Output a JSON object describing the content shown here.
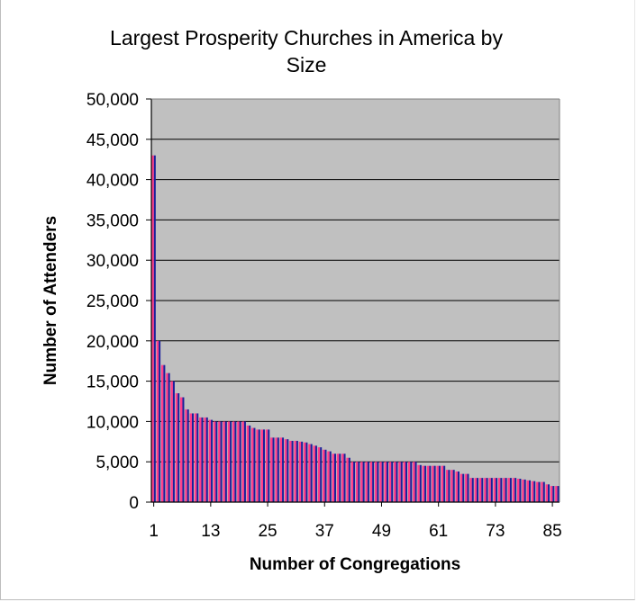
{
  "chart_data": {
    "type": "bar",
    "title_line1": "Largest Prosperity Churches in America by",
    "title_line2": "Size",
    "xlabel": "Number of Congregations",
    "ylabel": "Number of Attenders",
    "ylim": [
      0,
      50000
    ],
    "yticks": [
      0,
      5000,
      10000,
      15000,
      20000,
      25000,
      30000,
      35000,
      40000,
      45000,
      50000
    ],
    "ytick_labels": [
      "0",
      "5,000",
      "10,000",
      "15,000",
      "20,000",
      "25,000",
      "30,000",
      "35,000",
      "40,000",
      "45,000",
      "50,000"
    ],
    "xtick_labels": [
      "1",
      "13",
      "25",
      "37",
      "49",
      "61",
      "73",
      "85"
    ],
    "xtick_positions": [
      1,
      13,
      25,
      37,
      49,
      61,
      73,
      85
    ],
    "grid": true,
    "plot_background": "#c0c0c0",
    "series_colors": [
      "#ff3d8a",
      "#1b1f9a"
    ],
    "values": [
      43000,
      20000,
      17000,
      16000,
      15000,
      13500,
      13000,
      11500,
      11000,
      11000,
      10500,
      10500,
      10200,
      10000,
      10000,
      10000,
      10000,
      10000,
      10000,
      10000,
      9500,
      9200,
      9000,
      9000,
      9000,
      8000,
      8000,
      8000,
      7800,
      7600,
      7600,
      7500,
      7400,
      7200,
      7000,
      6800,
      6500,
      6300,
      6000,
      6000,
      6000,
      5500,
      5000,
      5000,
      5000,
      5000,
      5000,
      5000,
      5000,
      5000,
      5000,
      5000,
      5000,
      5000,
      5000,
      5000,
      4600,
      4500,
      4500,
      4500,
      4500,
      4500,
      4000,
      4000,
      3800,
      3500,
      3500,
      3000,
      3000,
      3000,
      3000,
      3000,
      3000,
      3000,
      3000,
      3000,
      3000,
      2900,
      2800,
      2700,
      2600,
      2500,
      2500,
      2200,
      2000,
      2000
    ]
  }
}
